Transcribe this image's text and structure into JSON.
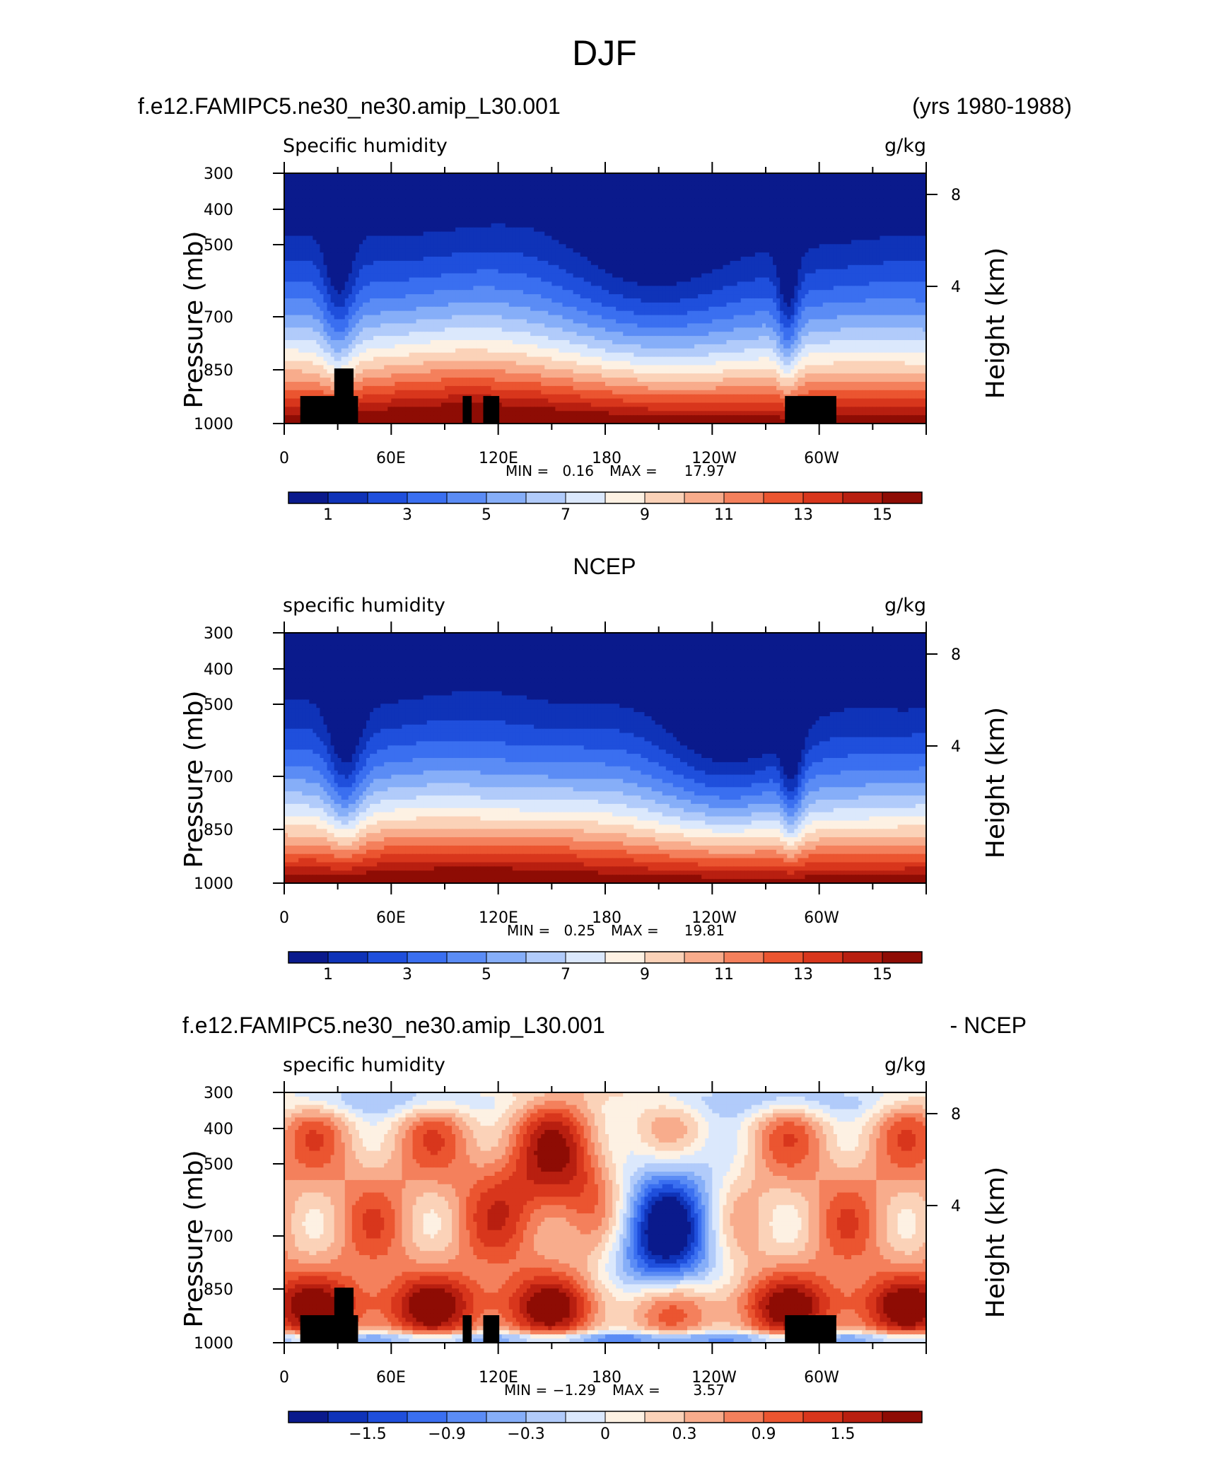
{
  "figure": {
    "title": "DJF"
  },
  "chart_data": [
    {
      "type": "heatmap",
      "header_left": "f.e12.FAMIPC5.ne30_ne30.amip_L30.001",
      "header_right": "(yrs 1980-1988)",
      "variable": "Specific humidity",
      "units": "g/kg",
      "ylabel": "Pressure (mb)",
      "ylabel_right": "Height (km)",
      "y_ticks": [
        "300",
        "400",
        "500",
        "700",
        "850",
        "1000"
      ],
      "y_right_ticks": [
        "8",
        "4"
      ],
      "x_ticks": [
        "0",
        "60E",
        "120E",
        "180",
        "120W",
        "60W"
      ],
      "min_label": "MIN =",
      "min_value": "0.16",
      "max_label": "MAX =",
      "max_value": "17.97",
      "colorbar_labels": [
        "1",
        "3",
        "5",
        "7",
        "9",
        "11",
        "13",
        "15"
      ],
      "field": "humidity",
      "n_levels": 16,
      "value_range": [
        0,
        16
      ],
      "terrain": true
    },
    {
      "type": "heatmap",
      "header_center": "NCEP",
      "variable": "specific humidity",
      "units": "g/kg",
      "ylabel": "Pressure (mb)",
      "ylabel_right": "Height (km)",
      "y_ticks": [
        "300",
        "400",
        "500",
        "700",
        "850",
        "1000"
      ],
      "y_right_ticks": [
        "8",
        "4"
      ],
      "x_ticks": [
        "0",
        "60E",
        "120E",
        "180",
        "120W",
        "60W"
      ],
      "min_label": "MIN =",
      "min_value": "0.25",
      "max_label": "MAX =",
      "max_value": "19.81",
      "colorbar_labels": [
        "1",
        "3",
        "5",
        "7",
        "9",
        "11",
        "13",
        "15"
      ],
      "field": "humidity_obs",
      "n_levels": 16,
      "value_range": [
        0,
        16
      ],
      "terrain": false
    },
    {
      "type": "heatmap",
      "header_left": "f.e12.FAMIPC5.ne30_ne30.amip_L30.001",
      "header_right": "- NCEP",
      "variable": "specific humidity",
      "units": "g/kg",
      "ylabel": "Pressure (mb)",
      "ylabel_right": "Height (km)",
      "y_ticks": [
        "300",
        "400",
        "500",
        "700",
        "850",
        "1000"
      ],
      "y_right_ticks": [
        "8",
        "4"
      ],
      "x_ticks": [
        "0",
        "60E",
        "120E",
        "180",
        "120W",
        "60W"
      ],
      "min_label": "MIN =",
      "min_value": "−1.29",
      "max_label": "MAX =",
      "max_value": "3.57",
      "colorbar_labels": [
        "−1.5",
        "−0.9",
        "−0.3",
        "0",
        "0.3",
        "0.9",
        "1.5"
      ],
      "field": "difference",
      "n_levels": 16,
      "value_range": [
        -2.4,
        2.4
      ],
      "terrain": true
    }
  ],
  "colors": {
    "palette": [
      "#0a1a8c",
      "#0f33b8",
      "#1f4fdc",
      "#3a6ff0",
      "#5b8cf5",
      "#86aef8",
      "#b1cbfa",
      "#dbe8fc",
      "#fdf1e3",
      "#fbd2b8",
      "#f8ac8c",
      "#f4805c",
      "#eb5530",
      "#d8361c",
      "#b81f10",
      "#8e0c04"
    ],
    "terrain": "#000000"
  }
}
